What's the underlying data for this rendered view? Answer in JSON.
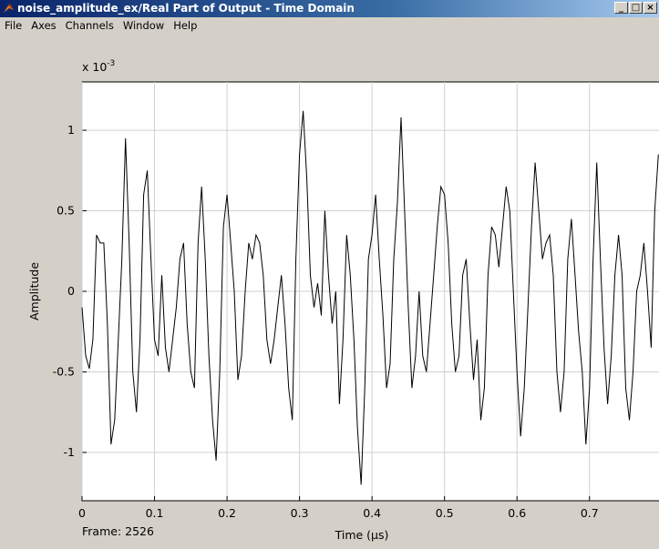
{
  "window": {
    "title": "noise_amplitude_ex/Real Part  of Output - Time Domain",
    "menu": [
      "File",
      "Axes",
      "Channels",
      "Window",
      "Help"
    ]
  },
  "chart_data": {
    "type": "line",
    "x_label": "Time (µs)",
    "y_label": "Amplitude",
    "y_multiplier": {
      "base": "x 10",
      "exponent": "-3"
    },
    "frame_label": "Frame: 2526",
    "color": "#000000",
    "grid": true,
    "xlim": [
      0,
      0.8
    ],
    "ylim": [
      -1.3,
      1.3
    ],
    "xticks": [
      0,
      0.1,
      0.2,
      0.3,
      0.4,
      0.5,
      0.6,
      0.7
    ],
    "yticks": [
      -1,
      -0.5,
      0,
      0.5,
      1
    ],
    "x": [
      0,
      0.005,
      0.01,
      0.015,
      0.02,
      0.025,
      0.03,
      0.035,
      0.04,
      0.045,
      0.05,
      0.055,
      0.06,
      0.065,
      0.07,
      0.075,
      0.08,
      0.085,
      0.09,
      0.095,
      0.1,
      0.105,
      0.11,
      0.115,
      0.12,
      0.125,
      0.13,
      0.135,
      0.14,
      0.145,
      0.15,
      0.155,
      0.16,
      0.165,
      0.17,
      0.175,
      0.18,
      0.185,
      0.19,
      0.195,
      0.2,
      0.205,
      0.21,
      0.215,
      0.22,
      0.225,
      0.23,
      0.235,
      0.24,
      0.245,
      0.25,
      0.255,
      0.26,
      0.265,
      0.27,
      0.275,
      0.28,
      0.285,
      0.29,
      0.295,
      0.3,
      0.305,
      0.31,
      0.315,
      0.32,
      0.325,
      0.33,
      0.335,
      0.34,
      0.345,
      0.35,
      0.355,
      0.36,
      0.365,
      0.37,
      0.375,
      0.38,
      0.385,
      0.39,
      0.395,
      0.4,
      0.405,
      0.41,
      0.415,
      0.42,
      0.425,
      0.43,
      0.435,
      0.44,
      0.445,
      0.45,
      0.455,
      0.46,
      0.465,
      0.47,
      0.475,
      0.48,
      0.485,
      0.49,
      0.495,
      0.5,
      0.505,
      0.51,
      0.515,
      0.52,
      0.525,
      0.53,
      0.535,
      0.54,
      0.545,
      0.55,
      0.555,
      0.56,
      0.565,
      0.57,
      0.575,
      0.58,
      0.585,
      0.59,
      0.595,
      0.6,
      0.605,
      0.61,
      0.615,
      0.62,
      0.625,
      0.63,
      0.635,
      0.64,
      0.645,
      0.65,
      0.655,
      0.66,
      0.665,
      0.67,
      0.675,
      0.68,
      0.685,
      0.69,
      0.695,
      0.7,
      0.705,
      0.71,
      0.715,
      0.72,
      0.725,
      0.73,
      0.735,
      0.74,
      0.745,
      0.75,
      0.755,
      0.76,
      0.765,
      0.77,
      0.775,
      0.78,
      0.785,
      0.79,
      0.795
    ],
    "values": [
      -0.1,
      -0.4,
      -0.48,
      -0.3,
      0.35,
      0.3,
      0.3,
      -0.2,
      -0.95,
      -0.8,
      -0.3,
      0.2,
      0.95,
      0.3,
      -0.5,
      -0.75,
      -0.3,
      0.6,
      0.75,
      0.2,
      -0.3,
      -0.4,
      0.1,
      -0.35,
      -0.5,
      -0.3,
      -0.1,
      0.2,
      0.3,
      -0.2,
      -0.5,
      -0.6,
      0.3,
      0.65,
      0.2,
      -0.4,
      -0.8,
      -1.05,
      -0.5,
      0.4,
      0.6,
      0.3,
      0.0,
      -0.55,
      -0.4,
      0.0,
      0.3,
      0.2,
      0.35,
      0.3,
      0.1,
      -0.3,
      -0.45,
      -0.3,
      -0.1,
      0.1,
      -0.2,
      -0.6,
      -0.8,
      0.2,
      0.85,
      1.12,
      0.7,
      0.1,
      -0.1,
      0.05,
      -0.15,
      0.5,
      0.1,
      -0.2,
      0.0,
      -0.7,
      -0.3,
      0.35,
      0.1,
      -0.3,
      -0.85,
      -1.2,
      -0.6,
      0.2,
      0.35,
      0.6,
      0.2,
      -0.15,
      -0.6,
      -0.45,
      0.2,
      0.55,
      1.08,
      0.5,
      -0.1,
      -0.6,
      -0.4,
      0.0,
      -0.4,
      -0.5,
      -0.2,
      0.1,
      0.4,
      0.65,
      0.6,
      0.3,
      -0.2,
      -0.5,
      -0.4,
      0.1,
      0.2,
      -0.2,
      -0.55,
      -0.3,
      -0.8,
      -0.6,
      0.1,
      0.4,
      0.35,
      0.15,
      0.4,
      0.65,
      0.5,
      0.0,
      -0.5,
      -0.9,
      -0.6,
      -0.1,
      0.4,
      0.8,
      0.5,
      0.2,
      0.3,
      0.35,
      0.1,
      -0.5,
      -0.75,
      -0.5,
      0.2,
      0.45,
      0.1,
      -0.25,
      -0.5,
      -0.95,
      -0.6,
      0.2,
      0.8,
      0.2,
      -0.35,
      -0.7,
      -0.4,
      0.1,
      0.35,
      0.1,
      -0.6,
      -0.8,
      -0.5,
      0.0,
      0.1,
      0.3,
      0.0,
      -0.35,
      0.5,
      0.85
    ]
  }
}
